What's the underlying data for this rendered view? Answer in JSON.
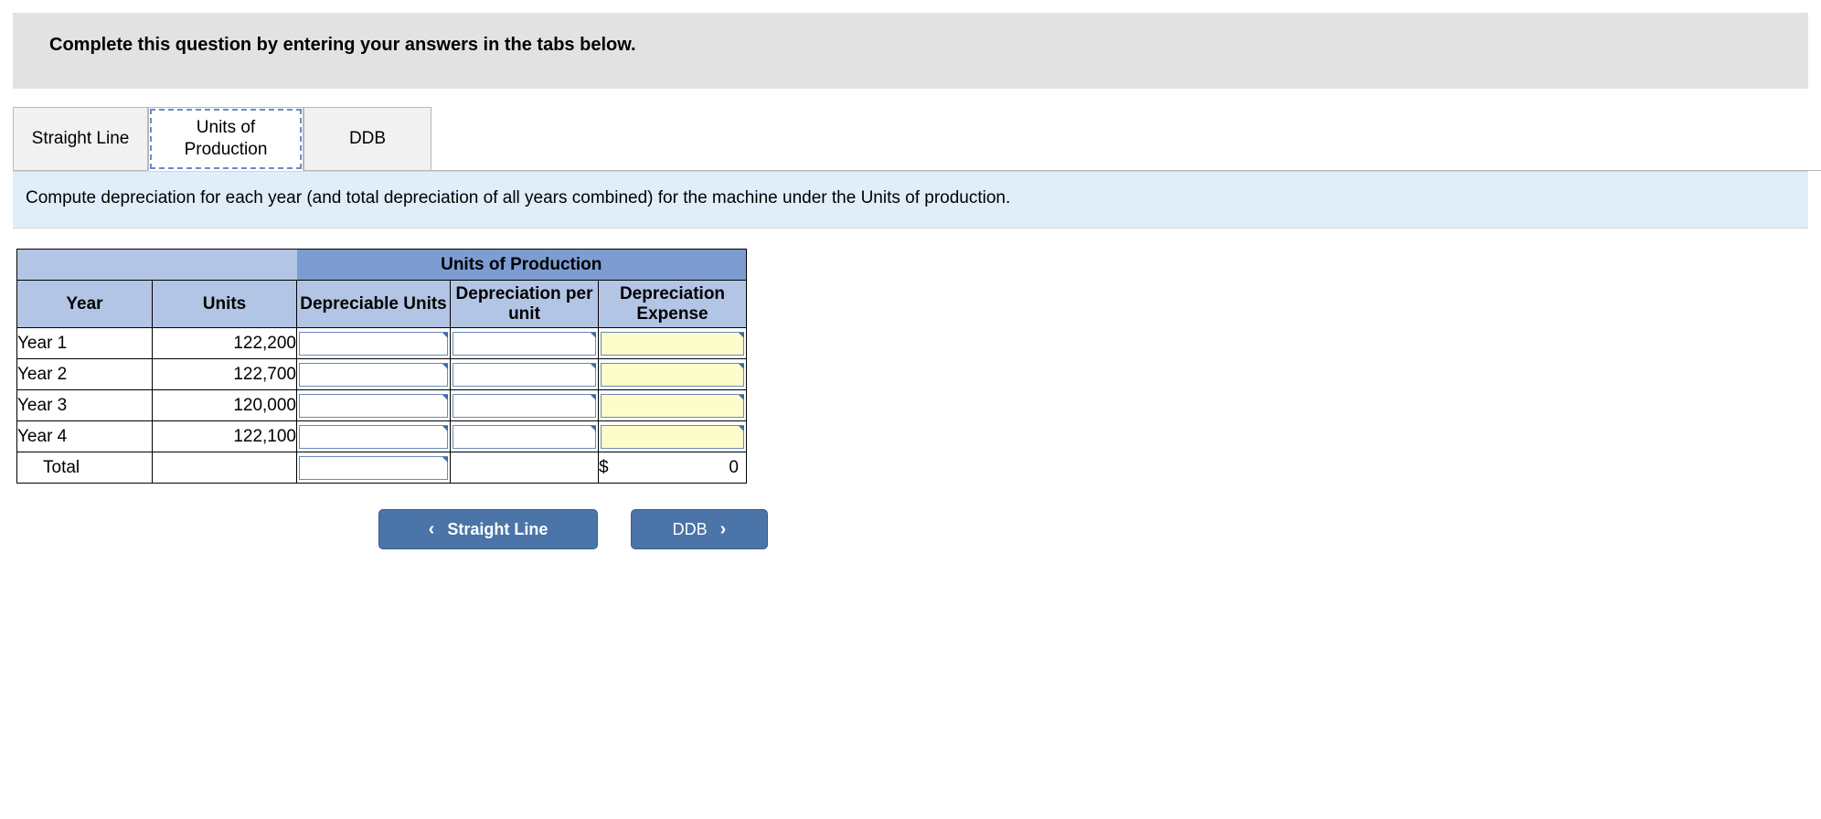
{
  "instruction": "Complete this question by entering your answers in the tabs below.",
  "tabs": {
    "straight_line": "Straight Line",
    "units_of_production": "Units of\nProduction",
    "ddb": "DDB"
  },
  "prompt_text": "Compute depreciation for each year (and total depreciation of all years combined) for the machine under the Units of production.",
  "table": {
    "title": "Units of Production",
    "headers": {
      "year": "Year",
      "units": "Units",
      "depreciable_units": "Depreciable Units",
      "depr_per_unit": "Depreciation per unit",
      "depr_expense": "Depreciation Expense"
    },
    "rows": [
      {
        "label": "Year 1",
        "units": "122,200"
      },
      {
        "label": "Year 2",
        "units": "122,700"
      },
      {
        "label": "Year 3",
        "units": "120,000"
      },
      {
        "label": "Year 4",
        "units": "122,100"
      }
    ],
    "total": {
      "label": "Total",
      "expense_prefix": "$",
      "expense_value": "0"
    }
  },
  "nav": {
    "prev_label": "Straight Line",
    "next_label": "DDB"
  },
  "colors": {
    "instruction_bg": "#e2e2e2",
    "prompt_bg": "#dfeef9",
    "header_mid": "#7d9dd2",
    "header_sub": "#b2c5e4",
    "input_yellow": "#fdfccb",
    "button_bg": "#4b74a8"
  }
}
